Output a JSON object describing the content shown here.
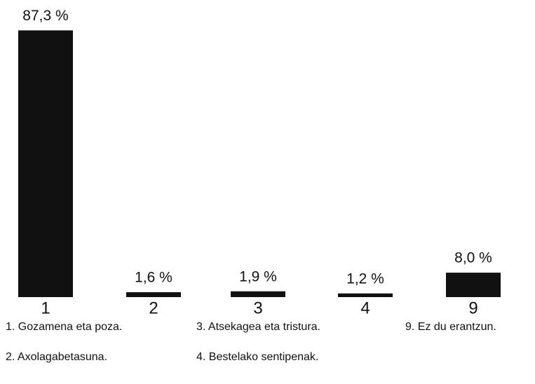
{
  "chart_data": {
    "type": "bar",
    "categories": [
      "1",
      "2",
      "3",
      "4",
      "9"
    ],
    "values": [
      87.3,
      1.6,
      1.9,
      1.2,
      8.0
    ],
    "value_labels": [
      "87,3 %",
      "1,6 %",
      "1,9 %",
      "1,2 %",
      "8,0 %"
    ],
    "color": "#111111",
    "legend": [
      "1. Gozamena eta poza.",
      "2. Axolagabetasuna.",
      "3. Atsekagea eta tristura.",
      "4. Bestelako sentipenak.",
      "9. Ez du erantzun."
    ]
  }
}
